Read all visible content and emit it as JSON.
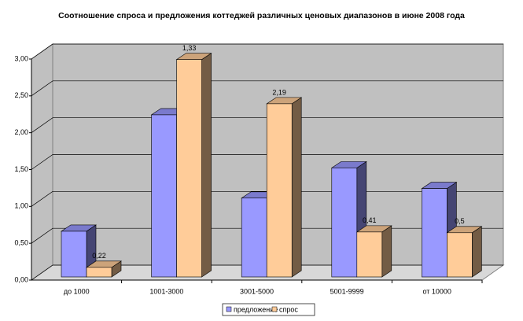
{
  "chart_data": {
    "type": "bar3d",
    "title": "Соотношение спроса и предложения коттеджей различных ценовых диапазонов в июне 2008 года",
    "categories": [
      "до 1000",
      "1001-3000",
      "3001-5000",
      "5001-9999",
      "от 10000"
    ],
    "series": [
      {
        "name": "предложение",
        "color": "#9999ff",
        "values": [
          0.62,
          2.2,
          1.07,
          1.48,
          1.2
        ]
      },
      {
        "name": "спрос",
        "color": "#ffcc99",
        "values": [
          0.13,
          2.95,
          2.35,
          0.61,
          0.6
        ]
      }
    ],
    "annotations": [
      "0,22",
      "1,33",
      "2,19",
      "0,41",
      "0,5"
    ],
    "ylim": [
      0,
      3
    ],
    "yticks": [
      {
        "value": 0,
        "label": "0,00"
      },
      {
        "value": 0.5,
        "label": "0,50"
      },
      {
        "value": 1,
        "label": "1,00"
      },
      {
        "value": 1.5,
        "label": "1,50"
      },
      {
        "value": 2,
        "label": "2,00"
      },
      {
        "value": 2.5,
        "label": "2,50"
      },
      {
        "value": 3,
        "label": "3,00"
      }
    ],
    "grid": true
  }
}
